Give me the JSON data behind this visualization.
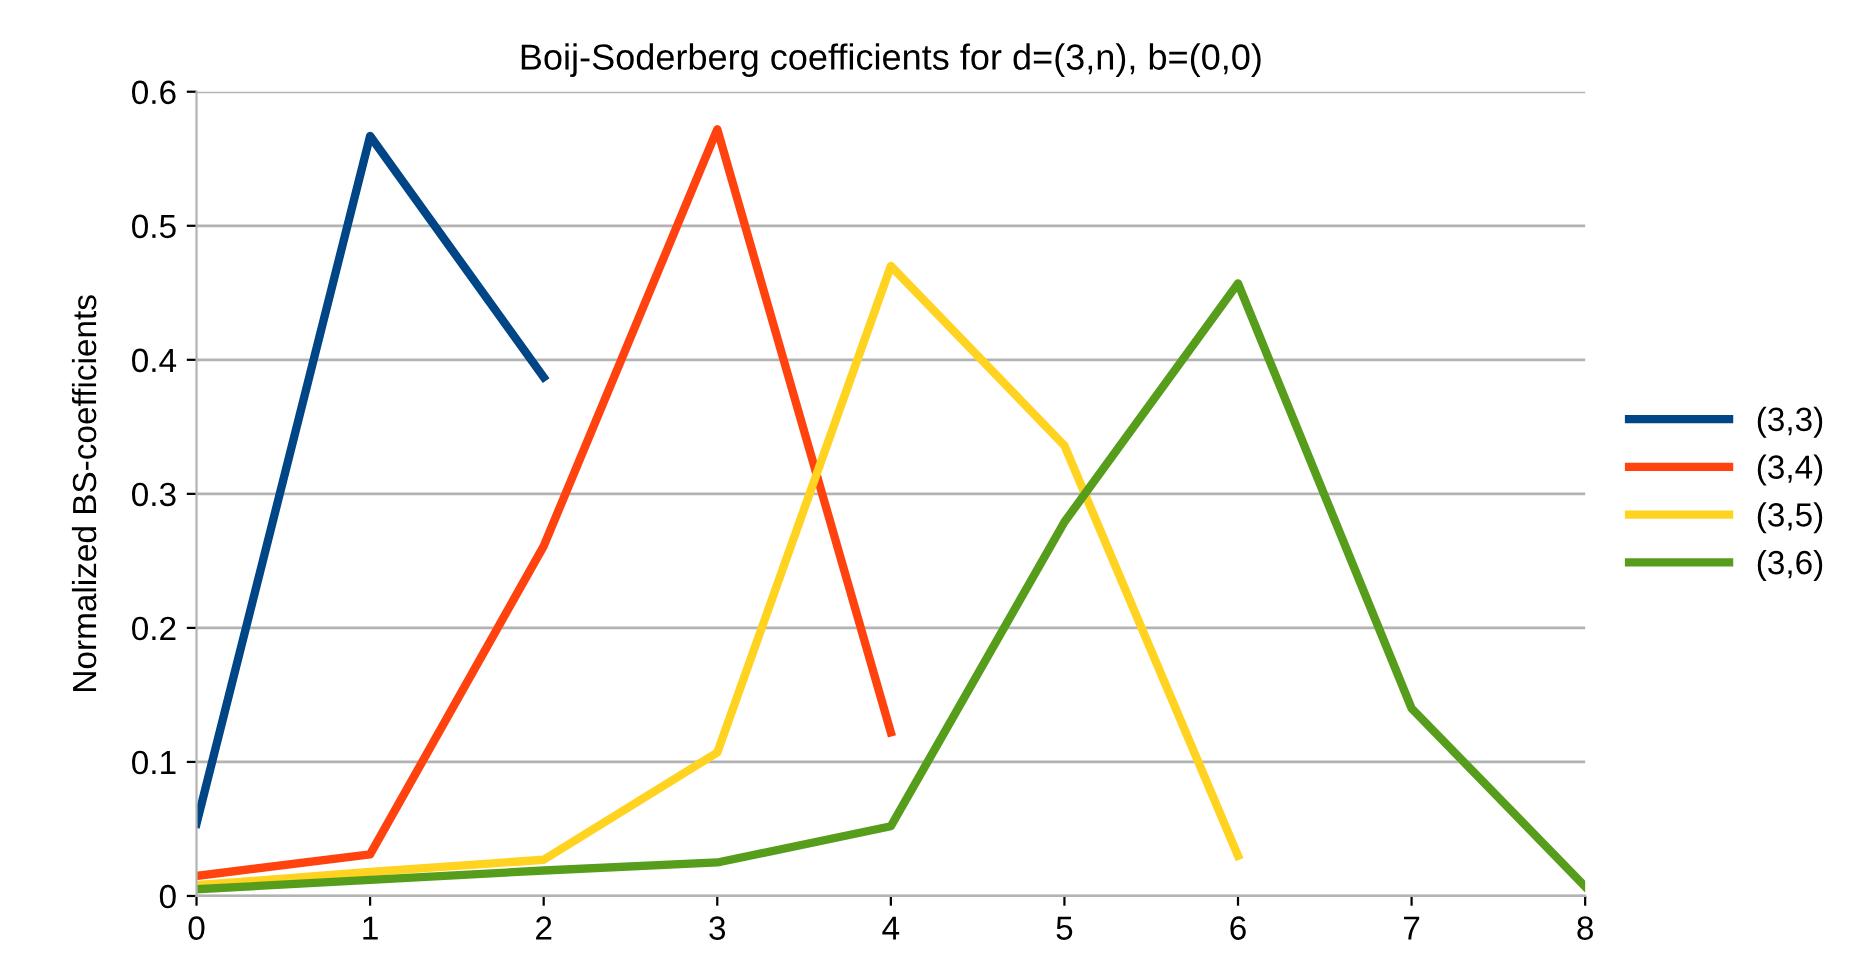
{
  "chart_data": {
    "type": "line",
    "title": "Boij-Soderberg coefficients for d=(3,n), b=(0,0)",
    "ylabel": "Normalized BS-coefficients",
    "xlim": [
      0,
      8
    ],
    "xticks": [
      0,
      1,
      2,
      3,
      4,
      5,
      6,
      7,
      8
    ],
    "ylim": [
      0,
      0.6
    ],
    "yticks": [
      0,
      0.1,
      0.2,
      0.3,
      0.4,
      0.5,
      0.6
    ],
    "grid": "y",
    "legend": "right",
    "marker": "none",
    "line_style": "solid",
    "series": [
      {
        "name": "(3,3)",
        "color": "#004586",
        "x": [
          0,
          1,
          2
        ],
        "values": [
          0.054,
          0.567,
          0.387
        ]
      },
      {
        "name": "(3,4)",
        "color": "#ff420e",
        "x": [
          0,
          1,
          2,
          3,
          4
        ],
        "values": [
          0.015,
          0.031,
          0.261,
          0.572,
          0.122
        ]
      },
      {
        "name": "(3,5)",
        "color": "#ffd320",
        "x": [
          0,
          1,
          2,
          3,
          4,
          5,
          6
        ],
        "values": [
          0.008,
          0.018,
          0.027,
          0.107,
          0.47,
          0.336,
          0.03
        ]
      },
      {
        "name": "(3,6)",
        "color": "#579d1c",
        "x": [
          0,
          1,
          2,
          3,
          4,
          5,
          6,
          7,
          8
        ],
        "values": [
          0.005,
          0.012,
          0.019,
          0.025,
          0.052,
          0.279,
          0.457,
          0.14,
          0.007
        ]
      }
    ]
  }
}
